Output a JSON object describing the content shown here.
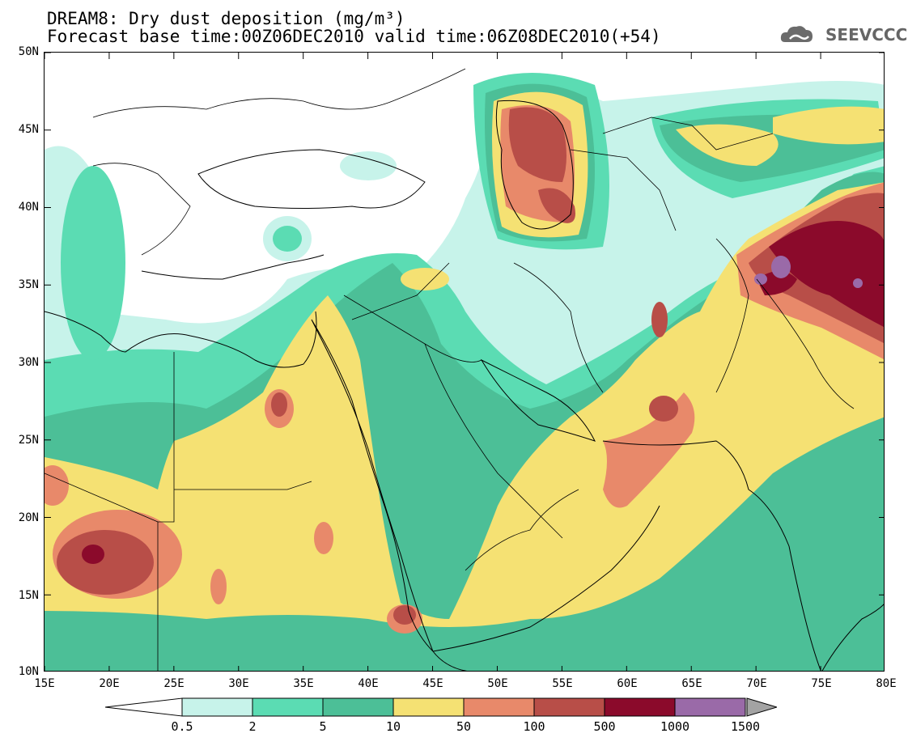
{
  "title": {
    "line1": "DREAM8: Dry dust deposition (mg/m³)",
    "line2": "Forecast base time:00Z06DEC2010 valid time:06Z08DEC2010(+54)"
  },
  "logo": {
    "text": "SEEVCCC",
    "icon": "cloud-icon"
  },
  "map": {
    "lon_range": [
      15,
      80
    ],
    "lat_range": [
      10,
      50
    ],
    "x_ticks": [
      "15E",
      "20E",
      "25E",
      "30E",
      "35E",
      "40E",
      "45E",
      "50E",
      "55E",
      "60E",
      "65E",
      "70E",
      "75E",
      "80E"
    ],
    "y_ticks": [
      "50N",
      "45N",
      "40N",
      "35N",
      "30N",
      "25N",
      "20N",
      "15N",
      "10N"
    ],
    "colors": {
      "c1": "#c7f3ea",
      "c2": "#5bdcb3",
      "c3": "#4cbf97",
      "c4": "#f5e173",
      "c5": "#e8896a",
      "c6": "#b84e48",
      "c7": "#8b0a2b",
      "c8": "#9a6aa8"
    }
  },
  "colorbar": {
    "labels": [
      "0.5",
      "2",
      "5",
      "10",
      "50",
      "100",
      "500",
      "1000",
      "1500"
    ],
    "colors": [
      "#c7f3ea",
      "#5bdcb3",
      "#4cbf97",
      "#f5e173",
      "#e8896a",
      "#b84e48",
      "#8b0a2b",
      "#9a6aa8"
    ],
    "under_color": "#ffffff",
    "over_color": "#a3a3a3"
  }
}
